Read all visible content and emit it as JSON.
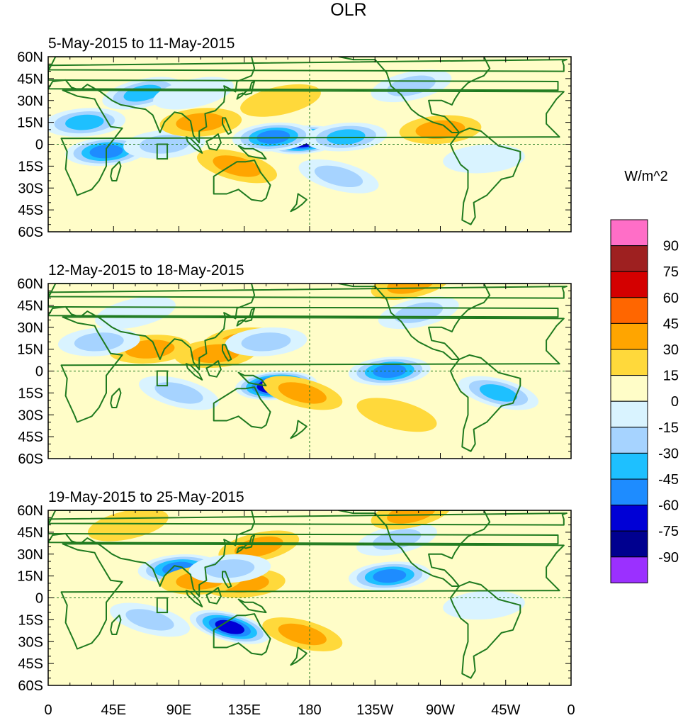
{
  "chart_data": {
    "type": "heatmap",
    "title": "OLR",
    "units": "W/m^2",
    "colorbar": {
      "levels": [
        "90",
        "75",
        "60",
        "45",
        "30",
        "15",
        "0",
        "-15",
        "-30",
        "-45",
        "-60",
        "-75",
        "-90"
      ],
      "colors": [
        "#ff6ec7",
        "#9e2020",
        "#d40000",
        "#ff6600",
        "#ffa500",
        "#ffd93b",
        "#fffdc8",
        "#d9f3ff",
        "#a6d3ff",
        "#1ec0ff",
        "#1e8cff",
        "#0000d6",
        "#00008f",
        "#9b30ff"
      ]
    },
    "x_ticks": [
      "0",
      "45E",
      "90E",
      "135E",
      "180",
      "135W",
      "90W",
      "45W",
      "0"
    ],
    "y_ticks": [
      "60N",
      "45N",
      "30N",
      "15N",
      "0",
      "15S",
      "30S",
      "45S",
      "60S"
    ],
    "x_range_deg_east": [
      0,
      360
    ],
    "y_range_deg": [
      -60,
      60
    ],
    "panels": [
      {
        "title": "5-May-2015 to 11-May-2015",
        "anomalies": [
          {
            "lon": 175,
            "lat": 3,
            "value": -90
          },
          {
            "lon": 155,
            "lat": 5,
            "value": -60
          },
          {
            "lon": 205,
            "lat": 5,
            "value": -45
          },
          {
            "lon": 40,
            "lat": -5,
            "value": -60
          },
          {
            "lon": 25,
            "lat": 15,
            "value": -45
          },
          {
            "lon": 65,
            "lat": 35,
            "value": -45
          },
          {
            "lon": 80,
            "lat": 0,
            "value": -30
          },
          {
            "lon": 250,
            "lat": 40,
            "value": -30
          },
          {
            "lon": 105,
            "lat": 15,
            "value": 30
          },
          {
            "lon": 130,
            "lat": -15,
            "value": 30
          },
          {
            "lon": 100,
            "lat": 35,
            "value": -15
          },
          {
            "lon": 200,
            "lat": -22,
            "value": -30
          },
          {
            "lon": 270,
            "lat": 10,
            "value": 30
          },
          {
            "lon": 160,
            "lat": 30,
            "value": 15
          },
          {
            "lon": 300,
            "lat": -10,
            "value": -15
          }
        ]
      },
      {
        "title": "12-May-2015 to 18-May-2015",
        "anomalies": [
          {
            "lon": 157,
            "lat": -10,
            "value": -90
          },
          {
            "lon": 135,
            "lat": 20,
            "value": 30
          },
          {
            "lon": 115,
            "lat": 12,
            "value": 30
          },
          {
            "lon": 235,
            "lat": 0,
            "value": -60
          },
          {
            "lon": 255,
            "lat": 40,
            "value": -30
          },
          {
            "lon": 310,
            "lat": -15,
            "value": -45
          },
          {
            "lon": 70,
            "lat": 15,
            "value": 30
          },
          {
            "lon": 35,
            "lat": 20,
            "value": -30
          },
          {
            "lon": 90,
            "lat": -15,
            "value": -30
          },
          {
            "lon": 175,
            "lat": -15,
            "value": 30
          },
          {
            "lon": 250,
            "lat": 60,
            "value": 30
          },
          {
            "lon": 60,
            "lat": 40,
            "value": -15
          },
          {
            "lon": 150,
            "lat": 20,
            "value": -30
          },
          {
            "lon": 240,
            "lat": -30,
            "value": 15
          }
        ]
      },
      {
        "title": "19-May-2015 to 25-May-2015",
        "anomalies": [
          {
            "lon": 235,
            "lat": 15,
            "value": -60
          },
          {
            "lon": 90,
            "lat": 20,
            "value": -60
          },
          {
            "lon": 125,
            "lat": -20,
            "value": -75
          },
          {
            "lon": 135,
            "lat": 10,
            "value": 30
          },
          {
            "lon": 105,
            "lat": 12,
            "value": 30
          },
          {
            "lon": 240,
            "lat": 40,
            "value": -30
          },
          {
            "lon": 250,
            "lat": 58,
            "value": 30
          },
          {
            "lon": 175,
            "lat": -25,
            "value": 30
          },
          {
            "lon": 70,
            "lat": -15,
            "value": -30
          },
          {
            "lon": 145,
            "lat": 35,
            "value": 30
          },
          {
            "lon": 55,
            "lat": 50,
            "value": 15
          },
          {
            "lon": 300,
            "lat": -5,
            "value": -15
          },
          {
            "lon": 125,
            "lat": 20,
            "value": -30
          }
        ]
      }
    ]
  }
}
